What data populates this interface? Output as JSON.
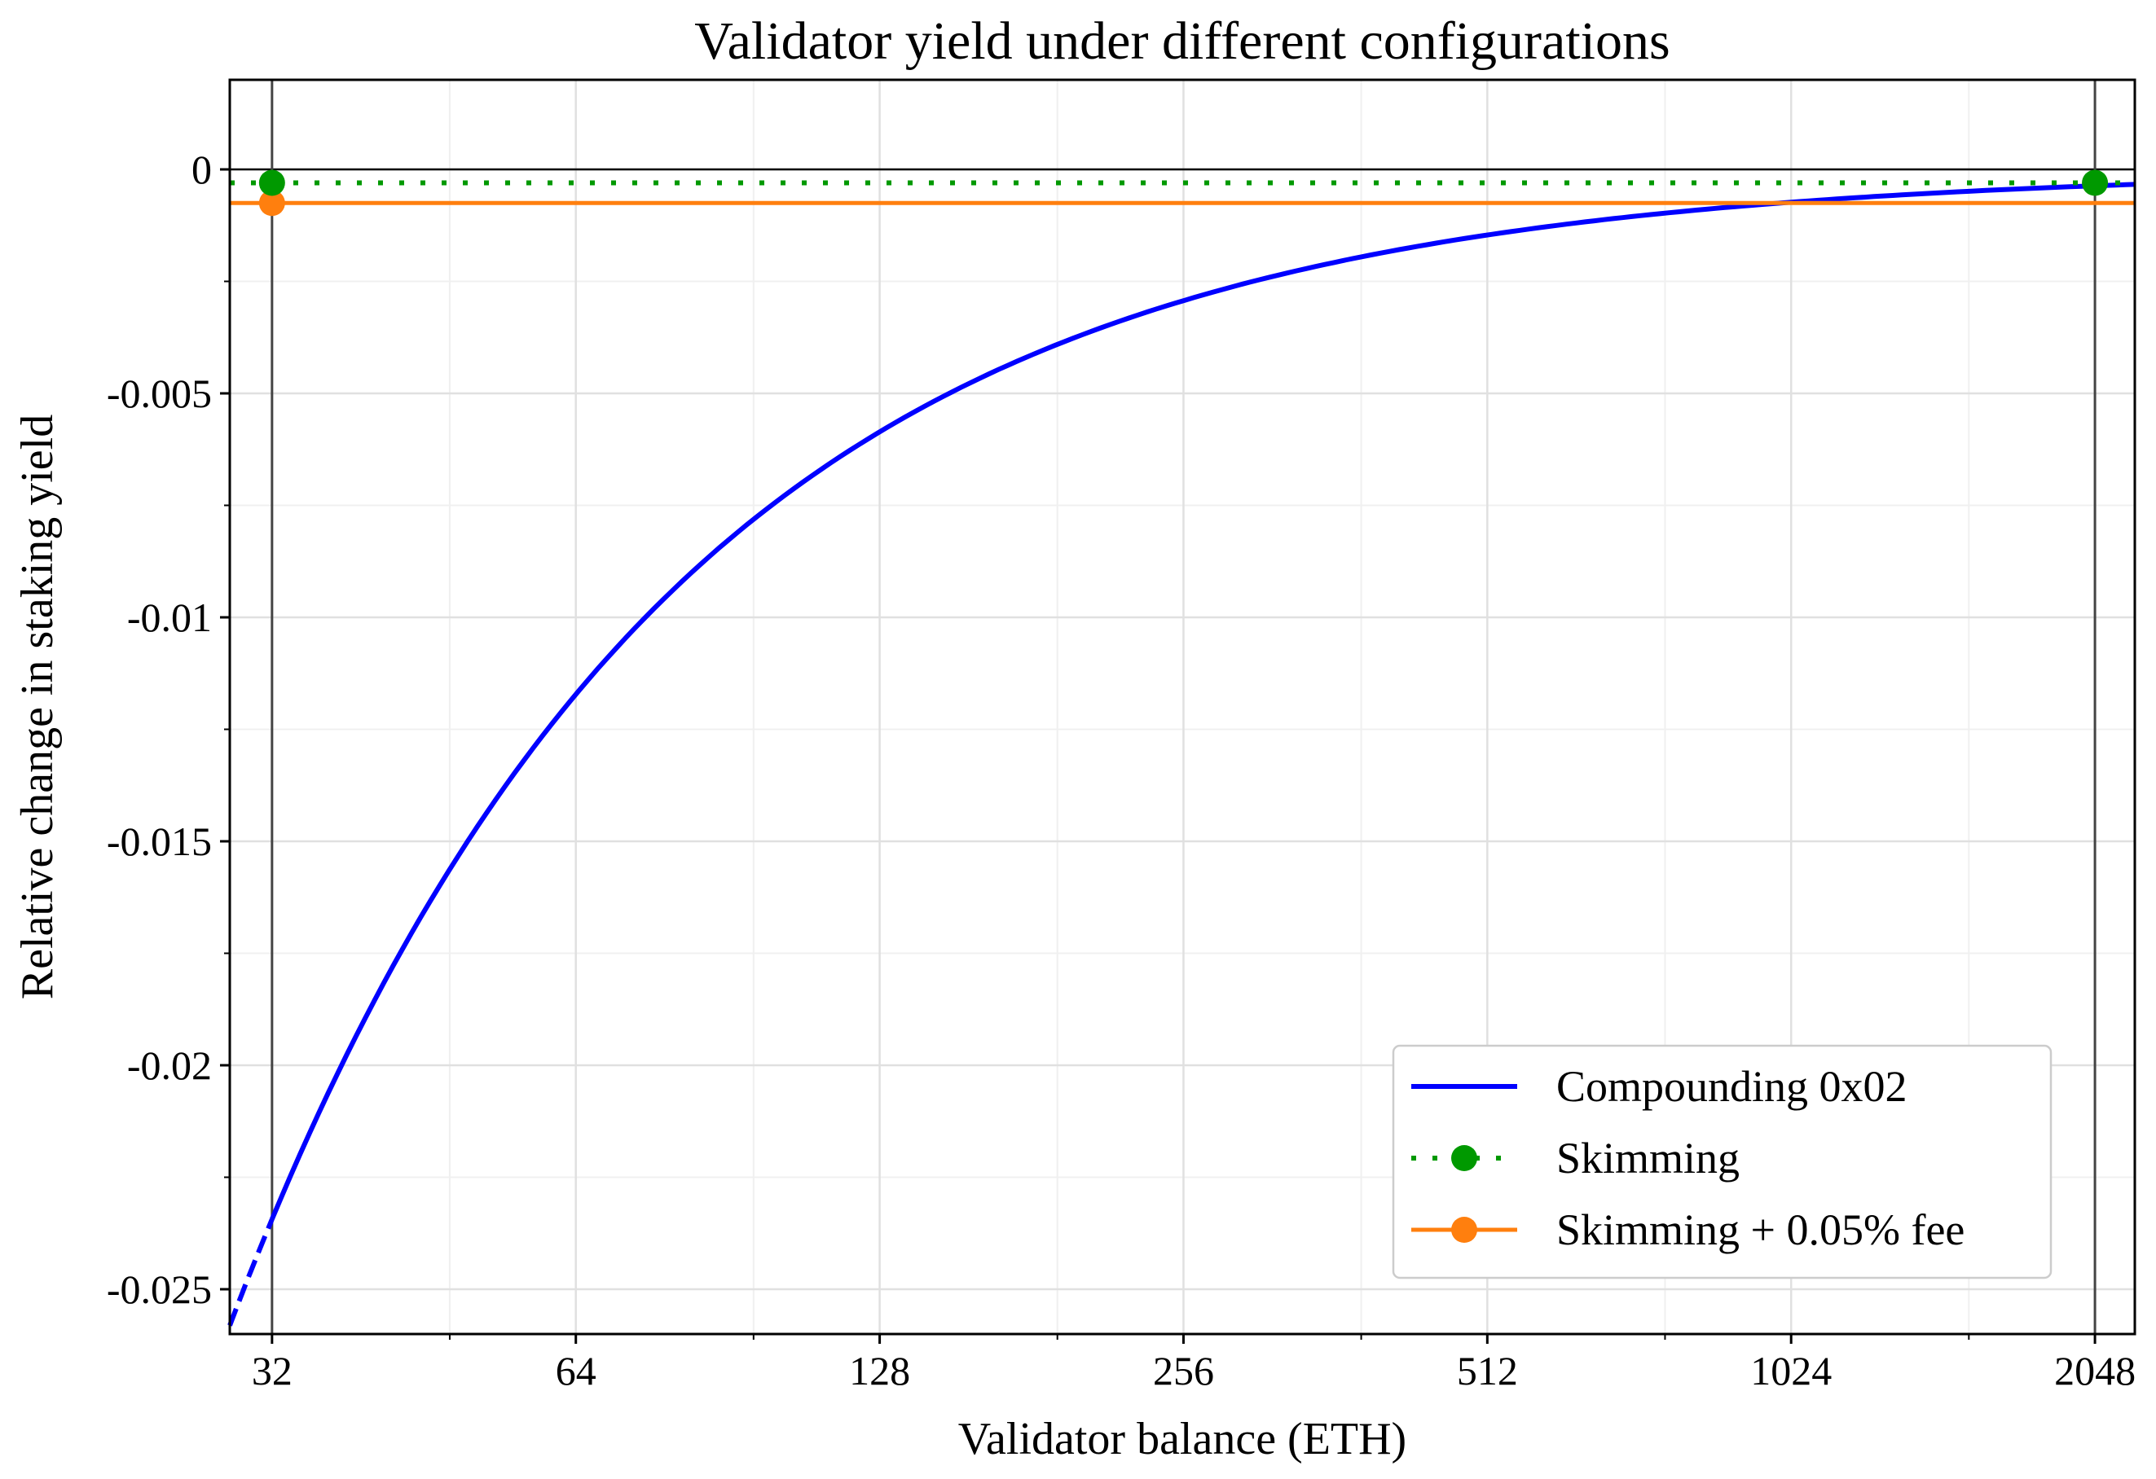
{
  "chart_data": {
    "type": "line",
    "title": "Validator yield under different configurations",
    "xlabel": "Validator balance (ETH)",
    "ylabel": "Relative change in staking yield",
    "xscale": "log2",
    "xlim": [
      29.06,
      2243
    ],
    "ylim": [
      -0.026,
      0.002
    ],
    "xticks": [
      32,
      64,
      128,
      256,
      512,
      1024,
      2048
    ],
    "xtick_labels": [
      "32",
      "64",
      "128",
      "256",
      "512",
      "1024",
      "2048"
    ],
    "yticks": [
      0,
      -0.005,
      -0.01,
      -0.015,
      -0.02,
      -0.025
    ],
    "ytick_labels": [
      "0",
      "-0.005",
      "-0.01",
      "-0.015",
      "-0.02",
      "-0.025"
    ],
    "grid": true,
    "legend_position": "lower-right",
    "vertical_lines": [
      32,
      2048
    ],
    "series": [
      {
        "name": "Compounding 0x02",
        "color": "#0000ff",
        "style": "solid",
        "x": [
          32,
          48,
          64,
          96,
          128,
          192,
          256,
          384,
          512,
          768,
          1024,
          1536,
          2048
        ],
        "y": [
          -0.0234,
          -0.0156,
          -0.0117,
          -0.0078,
          -0.00586,
          -0.0039,
          -0.00293,
          -0.00195,
          -0.00146,
          -0.00098,
          -0.00073,
          -0.00049,
          -0.00037
        ],
        "extrapolated_below_32": true
      },
      {
        "name": "Skimming",
        "color": "#009900",
        "style": "dotted",
        "y_const": -0.0003,
        "markers_x": [
          32,
          2048
        ]
      },
      {
        "name": "Skimming + 0.05% fee",
        "color": "#ff7f0e",
        "style": "solid",
        "y_const": -0.00075,
        "markers_x": [
          32
        ]
      }
    ]
  }
}
